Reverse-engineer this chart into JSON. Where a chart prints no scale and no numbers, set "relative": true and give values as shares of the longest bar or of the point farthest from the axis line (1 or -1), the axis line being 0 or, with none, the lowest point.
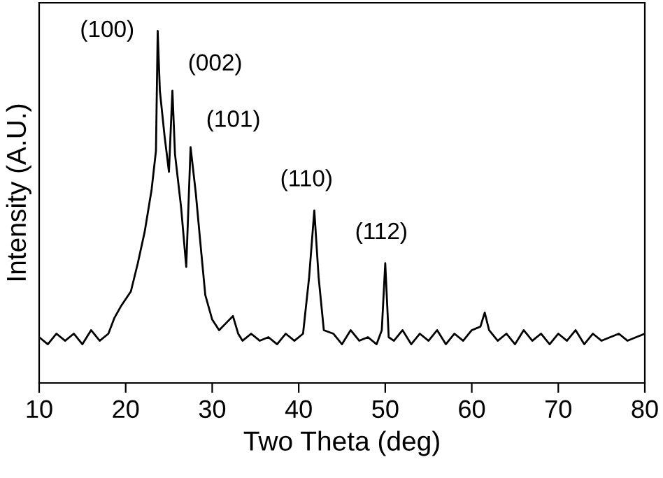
{
  "chart_data": {
    "type": "line",
    "relative": true,
    "xlabel": "Two Theta (deg)",
    "ylabel": "Intensity (A.U.)",
    "xlim": [
      10,
      80
    ],
    "xticks": [
      10,
      20,
      30,
      40,
      50,
      60,
      70,
      80
    ],
    "grid": false,
    "marker": "none",
    "line_style": "solid",
    "series": [
      {
        "color": "#000000",
        "x": [
          10,
          11,
          12,
          13,
          14,
          15,
          16,
          17,
          18,
          18.7,
          19.5,
          20.6,
          21.4,
          22.2,
          23,
          23.5,
          23.7,
          23.95,
          24.5,
          25.0,
          25.4,
          25.7,
          26.4,
          27.0,
          27.5,
          28.1,
          28.7,
          29.2,
          30,
          30.8,
          31.6,
          32.4,
          33,
          33.5,
          34.5,
          35.5,
          36.5,
          37.5,
          38.5,
          39.5,
          40.5,
          41.2,
          41.8,
          42.3,
          42.9,
          44,
          45,
          46,
          47,
          48,
          49,
          49.6,
          50.0,
          50.4,
          51,
          52,
          53,
          54,
          55,
          56,
          57,
          58,
          59,
          60,
          61,
          61.5,
          62,
          63,
          64,
          65,
          66,
          67,
          68,
          69,
          70,
          71,
          72,
          73,
          74,
          75,
          76,
          77,
          78,
          79,
          80
        ],
        "values": [
          0.13,
          0.11,
          0.14,
          0.12,
          0.14,
          0.11,
          0.15,
          0.12,
          0.14,
          0.185,
          0.22,
          0.26,
          0.34,
          0.43,
          0.55,
          0.66,
          1.0,
          0.83,
          0.7,
          0.6,
          0.83,
          0.65,
          0.5,
          0.33,
          0.67,
          0.54,
          0.38,
          0.25,
          0.18,
          0.15,
          0.17,
          0.19,
          0.14,
          0.12,
          0.14,
          0.12,
          0.13,
          0.11,
          0.14,
          0.12,
          0.14,
          0.3,
          0.49,
          0.3,
          0.15,
          0.14,
          0.11,
          0.15,
          0.12,
          0.13,
          0.11,
          0.15,
          0.34,
          0.13,
          0.12,
          0.15,
          0.11,
          0.14,
          0.12,
          0.15,
          0.11,
          0.14,
          0.12,
          0.15,
          0.16,
          0.2,
          0.15,
          0.12,
          0.14,
          0.11,
          0.15,
          0.12,
          0.14,
          0.11,
          0.14,
          0.12,
          0.15,
          0.11,
          0.14,
          0.12,
          0.13,
          0.14,
          0.12,
          0.13,
          0.14
        ]
      }
    ],
    "annotations": [
      {
        "text": "(100)",
        "x": 23.7,
        "y": 1.0
      },
      {
        "text": "(002)",
        "x": 25.4,
        "y": 0.83
      },
      {
        "text": "(101)",
        "x": 27.5,
        "y": 0.67
      },
      {
        "text": "(110)",
        "x": 41.8,
        "y": 0.49
      },
      {
        "text": "(112)",
        "x": 50.0,
        "y": 0.34
      }
    ]
  }
}
